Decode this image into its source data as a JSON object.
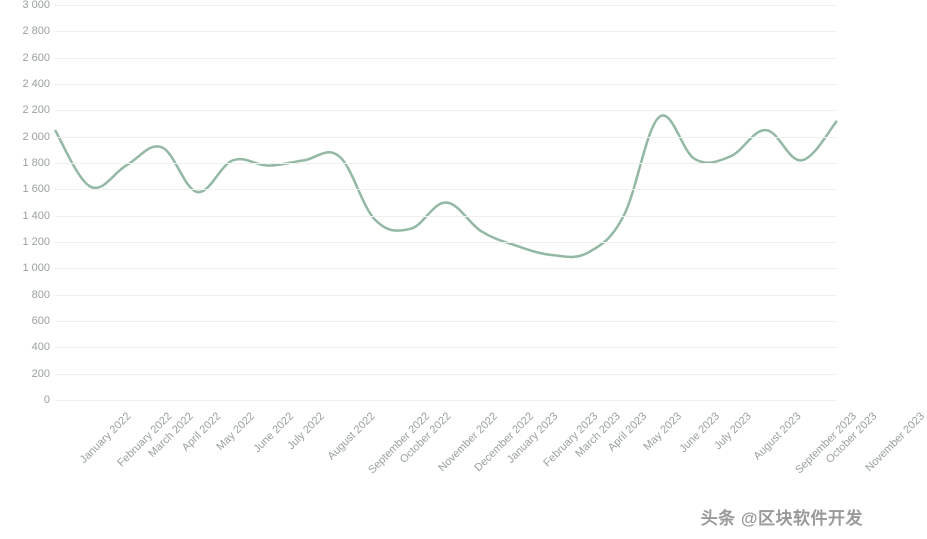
{
  "chart": {
    "type": "line",
    "background_color": "#ffffff",
    "grid_color": "#f0f0f0",
    "axis_label_color": "#9aa0a0",
    "axis_label_fontsize": 11,
    "ylim": [
      0,
      3000
    ],
    "ytick_step": 200,
    "yticks": [
      0,
      200,
      400,
      600,
      800,
      1000,
      1200,
      1400,
      1600,
      1800,
      2000,
      2200,
      2400,
      2600,
      2800,
      3000
    ],
    "ytick_labels": [
      "0",
      "200",
      "400",
      "600",
      "800",
      "1 000",
      "1 200",
      "1 400",
      "1 600",
      "1 800",
      "2 000",
      "2 200",
      "2 400",
      "2 600",
      "2 800",
      "3 000"
    ],
    "x_labels": [
      "January 2022",
      "February 2022",
      "March 2022",
      "April 2022",
      "May 2022",
      "June 2022",
      "July 2022",
      "August 2022",
      "September 2022",
      "October 2022",
      "November 2022",
      "December 2022",
      "January 2023",
      "February 2023",
      "March 2023",
      "April 2023",
      "May 2023",
      "June 2023",
      "July 2023",
      "August 2023",
      "September 2023",
      "October 2023",
      "November 2023"
    ],
    "x_label_rotation": -45,
    "series": [
      {
        "name": "value",
        "color": "#93b8a4",
        "stroke_width": 2.5,
        "smooth": true,
        "values": [
          2050,
          1620,
          1780,
          1920,
          1580,
          1820,
          1780,
          1820,
          1850,
          1370,
          1300,
          1500,
          1280,
          1170,
          1100,
          1120,
          1400,
          2150,
          1830,
          1850,
          2050,
          1820,
          2120
        ]
      }
    ]
  },
  "watermark": {
    "text": "头条 @区块软件开发",
    "color": "#888888",
    "fontsize": 17
  }
}
